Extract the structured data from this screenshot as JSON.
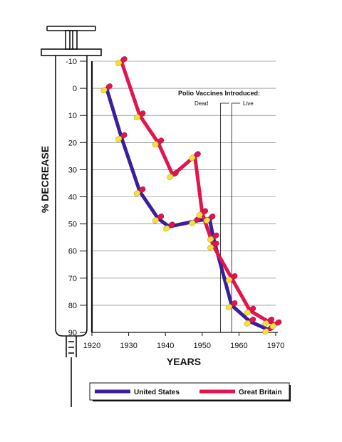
{
  "chart_data": {
    "type": "line",
    "xlabel": "YEARS",
    "ylabel": "% DECREASE",
    "xlim": [
      1920,
      1970
    ],
    "ylim": [
      -10,
      90
    ],
    "y_inverted": true,
    "x_ticks": [
      "1920",
      "1930",
      "1940",
      "1950",
      "1960",
      "1970"
    ],
    "y_ticks": [
      "-10",
      "0",
      "10",
      "20",
      "30",
      "40",
      "50",
      "60",
      "70",
      "80",
      "90"
    ],
    "grid": "horizontal",
    "legend_position": "bottom",
    "annotations": {
      "title": "Polio Vaccines Introduced:",
      "dead_label": "Dead",
      "dead_year": 1955,
      "live_label": "Live",
      "live_year": 1958
    },
    "series": [
      {
        "name": "United States",
        "color": "#3b1f9a",
        "x": [
          1924,
          1928,
          1933,
          1938,
          1941,
          1948,
          1952,
          1953,
          1958,
          1963,
          1968
        ],
        "y": [
          0,
          18,
          38,
          48,
          51,
          49,
          48,
          55,
          80,
          86,
          89
        ]
      },
      {
        "name": "Great Britain",
        "color": "#e0154e",
        "x": [
          1928,
          1933,
          1938,
          1942,
          1948,
          1950,
          1953,
          1958,
          1963,
          1968,
          1970
        ],
        "y": [
          -10,
          10,
          20,
          32,
          25,
          46,
          58,
          70,
          82,
          86,
          87
        ]
      }
    ]
  },
  "colors": {
    "capsule_yellow": "#f2e23a",
    "capsule_red": "#e0154e",
    "syringe": "#111111"
  }
}
